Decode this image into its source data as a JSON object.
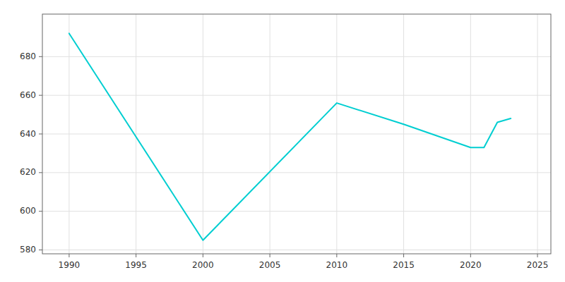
{
  "chart_data": {
    "type": "line",
    "x": [
      1990,
      2000,
      2010,
      2015,
      2020,
      2021,
      2022,
      2023
    ],
    "values": [
      692,
      585,
      656,
      645,
      633,
      633,
      646,
      648
    ],
    "color": "#00CED1",
    "xlim": [
      1988,
      2026
    ],
    "ylim": [
      578,
      702
    ],
    "xticks": [
      1990,
      1995,
      2000,
      2005,
      2010,
      2015,
      2020,
      2025
    ],
    "yticks": [
      580,
      600,
      620,
      640,
      660,
      680
    ],
    "grid": true
  }
}
